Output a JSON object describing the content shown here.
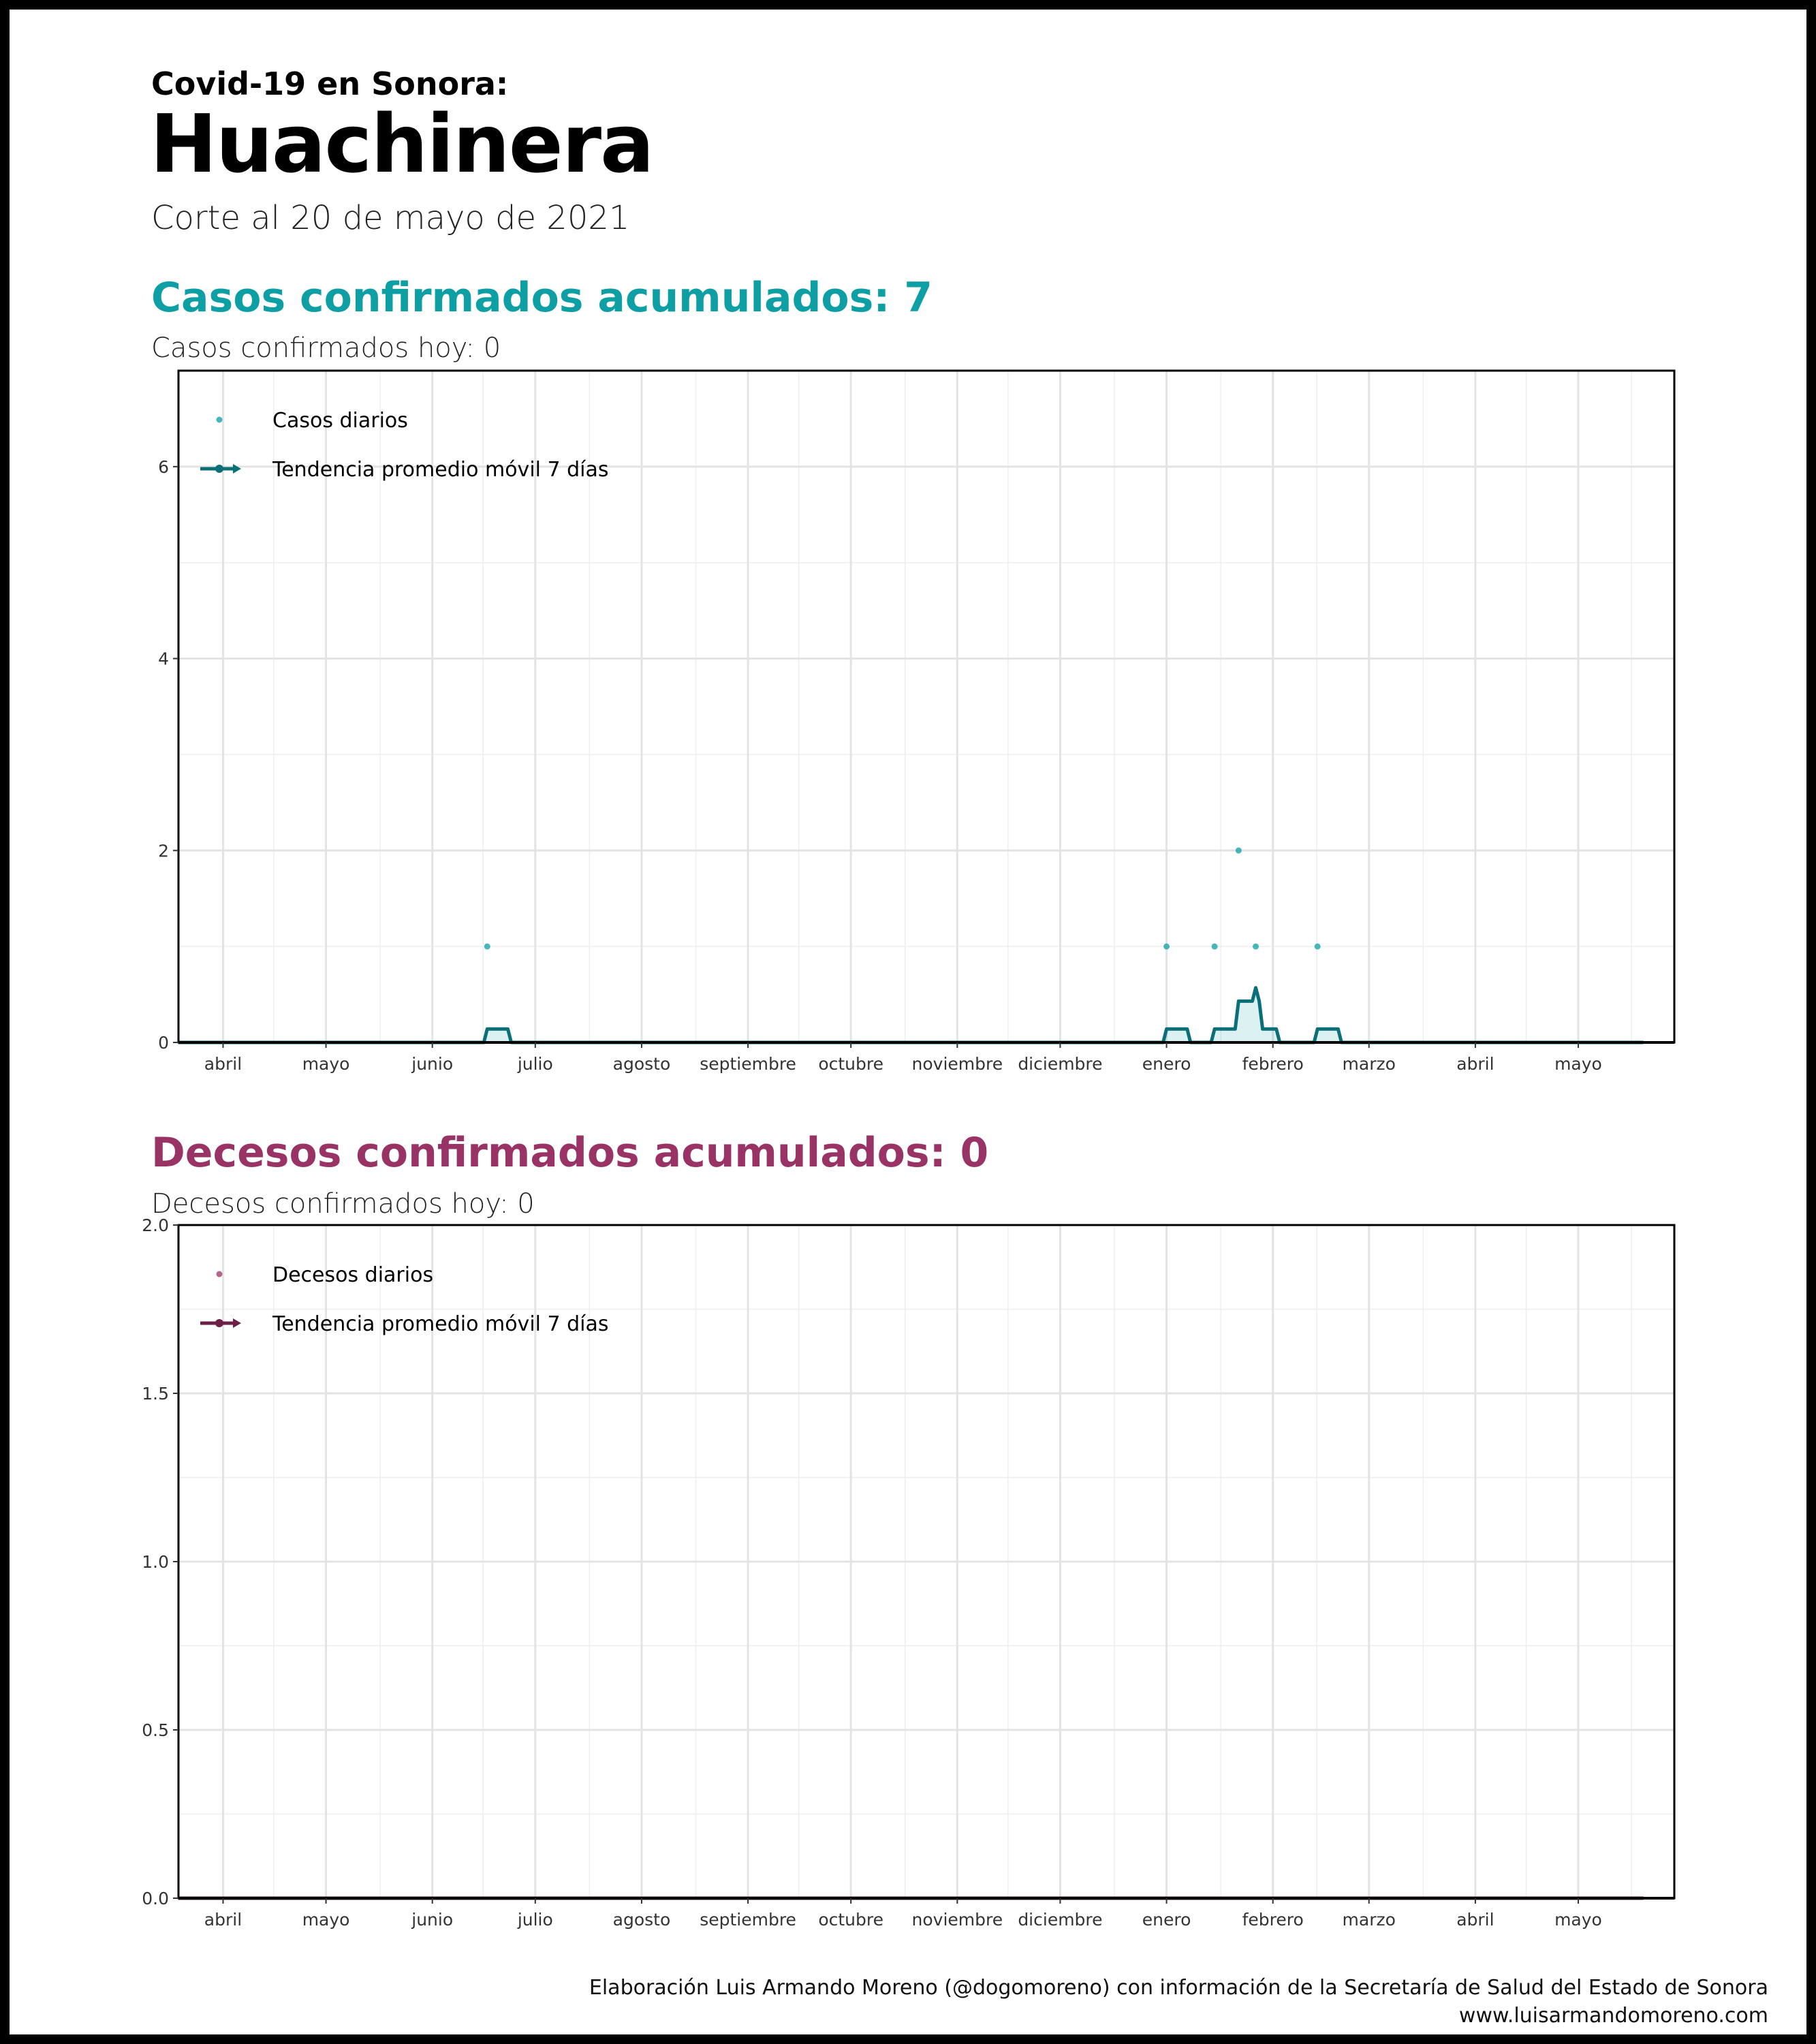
{
  "header": {
    "subtitle": "Covid-19 en Sonora:",
    "title": "Huachinera",
    "cutoff": "Corte al 20 de mayo de 2021"
  },
  "cases": {
    "heading": "Casos confirmados acumulados: 7",
    "today": "Casos confirmados hoy: 0",
    "color": "#0E9FA5",
    "trend_color": "#0B6F78",
    "legend_points": "Casos diarios",
    "legend_trend": "Tendencia promedio móvil 7 días"
  },
  "deaths": {
    "heading": "Decesos confirmados acumulados: 0",
    "today": "Decesos confirmados hoy: 0",
    "color": "#993366",
    "trend_color": "#6B1F47",
    "legend_points": "Decesos diarios",
    "legend_trend": "Tendencia promedio móvil 7 días"
  },
  "credits": {
    "line1": "Elaboración Luis Armando Moreno (@dogomoreno) con información de la Secretaría de Salud del Estado de Sonora",
    "line2": "www.luisarmandomoreno.com"
  },
  "chart_data": [
    {
      "type": "scatter",
      "title": "Casos confirmados acumulados: 7",
      "x_domain": [
        "2020-03-19",
        "2021-05-29"
      ],
      "ylim": [
        0,
        7
      ],
      "y_ticks": [
        0,
        2,
        4,
        6
      ],
      "y_tick_labels": [
        "0",
        "2",
        "4",
        "6"
      ],
      "x_ticks": [
        {
          "date": "2020-04-01",
          "label": "abril"
        },
        {
          "date": "2020-05-01",
          "label": "mayo"
        },
        {
          "date": "2020-06-01",
          "label": "junio"
        },
        {
          "date": "2020-07-01",
          "label": "julio"
        },
        {
          "date": "2020-08-01",
          "label": "agosto"
        },
        {
          "date": "2020-09-01",
          "label": "septiembre"
        },
        {
          "date": "2020-10-01",
          "label": "octubre"
        },
        {
          "date": "2020-11-01",
          "label": "noviembre"
        },
        {
          "date": "2020-12-01",
          "label": "diciembre"
        },
        {
          "date": "2021-01-01",
          "label": "enero"
        },
        {
          "date": "2021-02-01",
          "label": "febrero"
        },
        {
          "date": "2021-03-01",
          "label": "marzo"
        },
        {
          "date": "2021-04-01",
          "label": "abril"
        },
        {
          "date": "2021-05-01",
          "label": "mayo"
        }
      ],
      "grid": true,
      "legend_position": "top-left",
      "series": [
        {
          "name": "Casos diarios",
          "kind": "points",
          "points": [
            {
              "date": "2020-06-17",
              "value": 1
            },
            {
              "date": "2021-01-01",
              "value": 1
            },
            {
              "date": "2021-01-15",
              "value": 1
            },
            {
              "date": "2021-01-22",
              "value": 2
            },
            {
              "date": "2021-01-27",
              "value": 1
            },
            {
              "date": "2021-02-14",
              "value": 1
            }
          ]
        },
        {
          "name": "Tendencia promedio móvil 7 días",
          "kind": "line",
          "points": [
            {
              "date": "2020-03-19",
              "value": 0
            },
            {
              "date": "2020-06-16",
              "value": 0
            },
            {
              "date": "2020-06-17",
              "value": 0.14
            },
            {
              "date": "2020-06-23",
              "value": 0.14
            },
            {
              "date": "2020-06-24",
              "value": 0
            },
            {
              "date": "2020-12-31",
              "value": 0
            },
            {
              "date": "2021-01-01",
              "value": 0.14
            },
            {
              "date": "2021-01-07",
              "value": 0.14
            },
            {
              "date": "2021-01-08",
              "value": 0
            },
            {
              "date": "2021-01-14",
              "value": 0
            },
            {
              "date": "2021-01-15",
              "value": 0.14
            },
            {
              "date": "2021-01-21",
              "value": 0.14
            },
            {
              "date": "2021-01-22",
              "value": 0.43
            },
            {
              "date": "2021-01-26",
              "value": 0.43
            },
            {
              "date": "2021-01-27",
              "value": 0.57
            },
            {
              "date": "2021-01-28",
              "value": 0.43
            },
            {
              "date": "2021-01-29",
              "value": 0.14
            },
            {
              "date": "2021-02-02",
              "value": 0.14
            },
            {
              "date": "2021-02-03",
              "value": 0
            },
            {
              "date": "2021-02-13",
              "value": 0
            },
            {
              "date": "2021-02-14",
              "value": 0.14
            },
            {
              "date": "2021-02-20",
              "value": 0.14
            },
            {
              "date": "2021-02-21",
              "value": 0
            },
            {
              "date": "2021-05-20",
              "value": 0
            }
          ]
        }
      ]
    },
    {
      "type": "scatter",
      "title": "Decesos confirmados acumulados: 0",
      "x_domain": [
        "2020-03-19",
        "2021-05-29"
      ],
      "ylim": [
        0,
        2
      ],
      "y_ticks": [
        0,
        0.5,
        1,
        1.5,
        2
      ],
      "y_tick_labels": [
        "0.0",
        "0.5",
        "1.0",
        "1.5",
        "2.0"
      ],
      "x_ticks": [
        {
          "date": "2020-04-01",
          "label": "abril"
        },
        {
          "date": "2020-05-01",
          "label": "mayo"
        },
        {
          "date": "2020-06-01",
          "label": "junio"
        },
        {
          "date": "2020-07-01",
          "label": "julio"
        },
        {
          "date": "2020-08-01",
          "label": "agosto"
        },
        {
          "date": "2020-09-01",
          "label": "septiembre"
        },
        {
          "date": "2020-10-01",
          "label": "octubre"
        },
        {
          "date": "2020-11-01",
          "label": "noviembre"
        },
        {
          "date": "2020-12-01",
          "label": "diciembre"
        },
        {
          "date": "2021-01-01",
          "label": "enero"
        },
        {
          "date": "2021-02-01",
          "label": "febrero"
        },
        {
          "date": "2021-03-01",
          "label": "marzo"
        },
        {
          "date": "2021-04-01",
          "label": "abril"
        },
        {
          "date": "2021-05-01",
          "label": "mayo"
        }
      ],
      "grid": true,
      "legend_position": "top-left",
      "series": [
        {
          "name": "Decesos diarios",
          "kind": "points",
          "points": []
        },
        {
          "name": "Tendencia promedio móvil 7 días",
          "kind": "line",
          "points": [
            {
              "date": "2020-03-19",
              "value": 0
            },
            {
              "date": "2021-05-20",
              "value": 0
            }
          ]
        }
      ]
    }
  ]
}
